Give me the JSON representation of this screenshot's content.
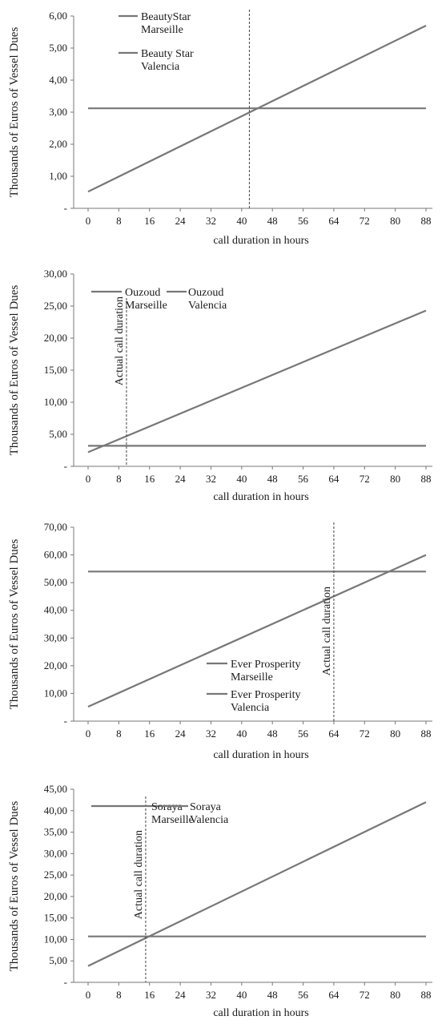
{
  "chart_data": [
    {
      "type": "line",
      "x": [
        0,
        8,
        16,
        24,
        32,
        40,
        48,
        56,
        64,
        72,
        80,
        88
      ],
      "x_tick_labels": [
        "0",
        "8",
        "16",
        "24",
        "32",
        "40",
        "48",
        "56",
        "64",
        "72",
        "80",
        "88"
      ],
      "y_tick_labels": [
        "-",
        "1,00",
        "2,00",
        "3,00",
        "4,00",
        "5,00",
        "6,00"
      ],
      "ylim": [
        0,
        6
      ],
      "xlabel": "call duration  in hours",
      "ylabel": "Thousands of Euros of Vessel Dues",
      "series": [
        {
          "name": "BeautyStar Marseille",
          "x": [
            0,
            88
          ],
          "y": [
            0.52,
            5.7
          ]
        },
        {
          "name": "Beauty Star Valencia",
          "x": [
            0,
            88
          ],
          "y": [
            3.12,
            3.12
          ]
        }
      ],
      "vertical_line": {
        "x": 42,
        "label": ""
      },
      "legend_position": "top-left",
      "grid": false
    },
    {
      "type": "line",
      "x": [
        0,
        8,
        16,
        24,
        32,
        40,
        48,
        56,
        64,
        72,
        80,
        88
      ],
      "x_tick_labels": [
        "0",
        "8",
        "16",
        "24",
        "32",
        "40",
        "48",
        "56",
        "64",
        "72",
        "80",
        "88"
      ],
      "y_tick_labels": [
        "-",
        "5,00",
        "10,00",
        "15,00",
        "20,00",
        "25,00",
        "30,00"
      ],
      "ylim": [
        0,
        30
      ],
      "xlabel": "call duration  in hours",
      "ylabel": "Thousands of Euros of Vessel Dues",
      "series": [
        {
          "name": "Ouzoud Marseille",
          "x": [
            0,
            88
          ],
          "y": [
            2.2,
            24.3
          ]
        },
        {
          "name": "Ouzoud Valencia",
          "x": [
            0,
            88
          ],
          "y": [
            3.2,
            3.2
          ]
        }
      ],
      "vertical_line": {
        "x": 10,
        "label": "Actual call duration"
      },
      "legend_position": "top-left",
      "grid": false
    },
    {
      "type": "line",
      "x": [
        0,
        8,
        16,
        24,
        32,
        40,
        48,
        56,
        64,
        72,
        80,
        88
      ],
      "x_tick_labels": [
        "0",
        "8",
        "16",
        "24",
        "32",
        "40",
        "48",
        "56",
        "64",
        "72",
        "80",
        "88"
      ],
      "y_tick_labels": [
        "-",
        "10,00",
        "20,00",
        "30,00",
        "40,00",
        "50,00",
        "60,00",
        "70,00"
      ],
      "ylim": [
        0,
        70
      ],
      "xlabel": "call duration  in hours",
      "ylabel": "Thousands of Euros of Vessel Dues",
      "series": [
        {
          "name": "Ever Prosperity Marseille",
          "x": [
            0,
            88
          ],
          "y": [
            5.2,
            60.0
          ]
        },
        {
          "name": "Ever Prosperity Valencia",
          "x": [
            0,
            88
          ],
          "y": [
            54.0,
            54.0
          ]
        }
      ],
      "vertical_line": {
        "x": 64,
        "label": "Actual call duration"
      },
      "legend_position": "bottom-center",
      "grid": false
    },
    {
      "type": "line",
      "x": [
        0,
        8,
        16,
        24,
        32,
        40,
        48,
        56,
        64,
        72,
        80,
        88
      ],
      "x_tick_labels": [
        "0",
        "8",
        "16",
        "24",
        "32",
        "40",
        "48",
        "56",
        "64",
        "72",
        "80",
        "88"
      ],
      "y_tick_labels": [
        "-",
        "5,00",
        "10,00",
        "15,00",
        "20,00",
        "25,00",
        "30,00",
        "35,00",
        "40,00",
        "45,00"
      ],
      "ylim": [
        0,
        45
      ],
      "xlabel": "call duration  in hours",
      "ylabel": "Thousands of Euros of Vessel Dues",
      "series": [
        {
          "name": "Soraya Marseille",
          "x": [
            0,
            88
          ],
          "y": [
            3.8,
            42.0
          ]
        },
        {
          "name": "Soraya Valencia",
          "x": [
            0,
            88
          ],
          "y": [
            10.7,
            10.7
          ]
        }
      ],
      "vertical_line": {
        "x": 15,
        "label": "Actual call duration"
      },
      "legend_position": "top-left",
      "grid": false
    }
  ],
  "legends": [
    [
      {
        "line1": "BeautyStar",
        "line2": "Marseille"
      },
      {
        "line1": "Beauty Star",
        "line2": "Valencia"
      }
    ],
    [
      {
        "line1": "Ouzoud",
        "line2": "Marseille"
      },
      {
        "line1": "Ouzoud",
        "line2": "Valencia"
      }
    ],
    [
      {
        "line1": "Ever Prosperity",
        "line2": "Marseille"
      },
      {
        "line1": "Ever Prosperity",
        "line2": "Valencia"
      }
    ],
    [
      {
        "line1": "Soraya",
        "line2": "Marseille"
      },
      {
        "line1": "Soraya",
        "line2": "Valencia"
      }
    ]
  ],
  "colors": {
    "series": "#777777",
    "text": "#1a1a1a",
    "vline": "#444444"
  }
}
